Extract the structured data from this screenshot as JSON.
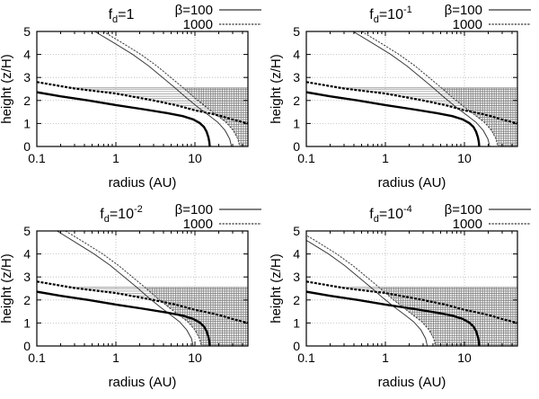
{
  "figure": {
    "background": "#ffffff",
    "ink_color": "#000000",
    "thin_curve_color": "#3a3a3a",
    "grid_color": "#b8b8b8",
    "hatch_h_color": "#8a8a8a",
    "hatch_x_color": "#6f6f6f",
    "xlabel": "radius (AU)",
    "ylabel": "height (z/H)",
    "x_tick_labels": [
      "0.1",
      "1",
      "10"
    ],
    "y_tick_labels": [
      "0",
      "1",
      "2",
      "3",
      "4",
      "5"
    ],
    "legend": [
      {
        "label": "β=100",
        "style": "solid"
      },
      {
        "label": "1000",
        "style": "dotted"
      }
    ]
  },
  "chart_data": {
    "type": "line",
    "layout": {
      "rows": 2,
      "cols": 2,
      "xscale": "log",
      "xrange": [
        0.1,
        46.8
      ],
      "yrange": [
        0,
        5
      ],
      "x_major_ticks": [
        0.1,
        1,
        10
      ],
      "x_minor_ticks": [
        0.2,
        0.3,
        0.4,
        0.5,
        0.6,
        0.7,
        0.8,
        0.9,
        2,
        3,
        4,
        5,
        6,
        7,
        8,
        9,
        20,
        30,
        40
      ],
      "y_ticks": [
        0,
        1,
        2,
        3,
        4,
        5
      ],
      "grid_x": [
        1,
        10
      ],
      "grid_y": [
        1,
        2,
        3,
        4
      ],
      "xlabel": "radius (AU)",
      "ylabel": "height (z/H)",
      "legend_position": "above-right",
      "grid": true,
      "hatch_top": 2.55
    },
    "shared_series": [
      {
        "name": "beta100-thick",
        "style": "thick-solid",
        "points": [
          [
            0.1,
            2.36
          ],
          [
            0.2,
            2.18
          ],
          [
            0.45,
            2.0
          ],
          [
            1,
            1.8
          ],
          [
            2.2,
            1.62
          ],
          [
            4.5,
            1.45
          ],
          [
            7,
            1.32
          ],
          [
            9.5,
            1.18
          ],
          [
            11.5,
            1.02
          ],
          [
            13,
            0.85
          ],
          [
            14,
            0.65
          ],
          [
            14.8,
            0.4
          ],
          [
            15.2,
            0.2
          ],
          [
            15.4,
            0
          ]
        ]
      },
      {
        "name": "beta1000-thick",
        "style": "thick-dotted",
        "points": [
          [
            0.1,
            2.8
          ],
          [
            0.3,
            2.52
          ],
          [
            1,
            2.3
          ],
          [
            3,
            2.0
          ],
          [
            6,
            1.78
          ],
          [
            10,
            1.57
          ],
          [
            15,
            1.45
          ],
          [
            21,
            1.33
          ],
          [
            30,
            1.17
          ],
          [
            46.8,
            1.0
          ]
        ]
      }
    ],
    "hatch_regions": {
      "horizontal_band": "between beta1000-thick curve and z=2.55, from r=0.27 to right edge",
      "cross_hatch": "right of panel thin dotted curve, 0 <= z <= 2.55"
    },
    "panels": [
      {
        "fd_label": "f_d=1",
        "fd_value": 1,
        "title": {
          "main": "f",
          "sub": "d",
          "rest": "=1",
          "sup": ""
        },
        "thin_solid": [
          [
            0.54,
            5
          ],
          [
            0.95,
            4.5
          ],
          [
            1.63,
            4
          ],
          [
            2.6,
            3.5
          ],
          [
            3.9,
            3
          ],
          [
            5.6,
            2.55
          ],
          [
            7.9,
            2.1
          ],
          [
            11,
            1.7
          ],
          [
            15,
            1.35
          ],
          [
            19.5,
            1.05
          ],
          [
            24,
            0.7
          ],
          [
            27.5,
            0.33
          ],
          [
            29,
            0
          ]
        ],
        "thin_dotted": [
          [
            0.69,
            5
          ],
          [
            1.21,
            4.5
          ],
          [
            2.07,
            4
          ],
          [
            3.3,
            3.5
          ],
          [
            4.95,
            3
          ],
          [
            7.1,
            2.55
          ],
          [
            10,
            2.1
          ],
          [
            14,
            1.7
          ],
          [
            19,
            1.35
          ],
          [
            24.8,
            1.05
          ],
          [
            30.5,
            0.7
          ],
          [
            34.9,
            0.33
          ],
          [
            36.8,
            0
          ]
        ]
      },
      {
        "fd_label": "f_d=10^-1",
        "fd_value": 0.1,
        "title": {
          "main": "f",
          "sub": "d",
          "rest": "=10",
          "sup": "-1"
        },
        "thin_solid": [
          [
            0.39,
            5
          ],
          [
            0.68,
            4.5
          ],
          [
            1.17,
            4
          ],
          [
            1.87,
            3.5
          ],
          [
            2.81,
            3
          ],
          [
            4.03,
            2.55
          ],
          [
            5.69,
            2.1
          ],
          [
            7.92,
            1.7
          ],
          [
            10.8,
            1.35
          ],
          [
            14.0,
            1.05
          ],
          [
            17.3,
            0.7
          ],
          [
            19.8,
            0.33
          ],
          [
            20.9,
            0
          ]
        ],
        "thin_dotted": [
          [
            0.5,
            5
          ],
          [
            0.87,
            4.5
          ],
          [
            1.49,
            4
          ],
          [
            2.38,
            3.5
          ],
          [
            3.56,
            3
          ],
          [
            5.11,
            2.55
          ],
          [
            7.2,
            2.1
          ],
          [
            10.1,
            1.7
          ],
          [
            13.7,
            1.35
          ],
          [
            17.9,
            1.05
          ],
          [
            22.0,
            0.7
          ],
          [
            25.1,
            0.33
          ],
          [
            26.5,
            0
          ]
        ]
      },
      {
        "fd_label": "f_d=10^-2",
        "fd_value": 0.01,
        "title": {
          "main": "f",
          "sub": "d",
          "rest": "=10",
          "sup": "-2"
        },
        "thin_solid": [
          [
            0.18,
            5
          ],
          [
            0.31,
            4.5
          ],
          [
            0.53,
            4
          ],
          [
            0.85,
            3.5
          ],
          [
            1.28,
            3
          ],
          [
            1.84,
            2.55
          ],
          [
            2.59,
            2.1
          ],
          [
            3.61,
            1.7
          ],
          [
            4.92,
            1.35
          ],
          [
            6.4,
            1.05
          ],
          [
            7.87,
            0.7
          ],
          [
            9.02,
            0.33
          ],
          [
            9.5,
            0
          ]
        ],
        "thin_dotted": [
          [
            0.23,
            5
          ],
          [
            0.4,
            4.5
          ],
          [
            0.68,
            4
          ],
          [
            1.08,
            3.5
          ],
          [
            1.62,
            3
          ],
          [
            2.33,
            2.55
          ],
          [
            3.28,
            2.1
          ],
          [
            4.59,
            1.7
          ],
          [
            6.23,
            1.35
          ],
          [
            8.13,
            1.05
          ],
          [
            10.0,
            0.7
          ],
          [
            11.4,
            0.33
          ],
          [
            12.1,
            0
          ]
        ]
      },
      {
        "fd_label": "f_d=10^-4",
        "fd_value": 0.0001,
        "title": {
          "main": "f",
          "sub": "d",
          "rest": "=10",
          "sup": "-4"
        },
        "thin_solid": [
          [
            0.063,
            5
          ],
          [
            0.111,
            4.5
          ],
          [
            0.191,
            4
          ],
          [
            0.304,
            3.5
          ],
          [
            0.456,
            3
          ],
          [
            0.655,
            2.55
          ],
          [
            0.924,
            2.1
          ],
          [
            1.29,
            1.7
          ],
          [
            1.76,
            1.35
          ],
          [
            2.28,
            1.05
          ],
          [
            2.81,
            0.7
          ],
          [
            3.22,
            0.33
          ],
          [
            3.39,
            0
          ]
        ],
        "thin_dotted": [
          [
            0.081,
            5
          ],
          [
            0.142,
            4.5
          ],
          [
            0.242,
            4
          ],
          [
            0.386,
            3.5
          ],
          [
            0.579,
            3
          ],
          [
            0.831,
            2.55
          ],
          [
            1.17,
            2.1
          ],
          [
            1.64,
            1.7
          ],
          [
            2.22,
            1.35
          ],
          [
            2.9,
            1.05
          ],
          [
            3.57,
            0.7
          ],
          [
            4.08,
            0.33
          ],
          [
            4.31,
            0
          ]
        ]
      }
    ]
  }
}
